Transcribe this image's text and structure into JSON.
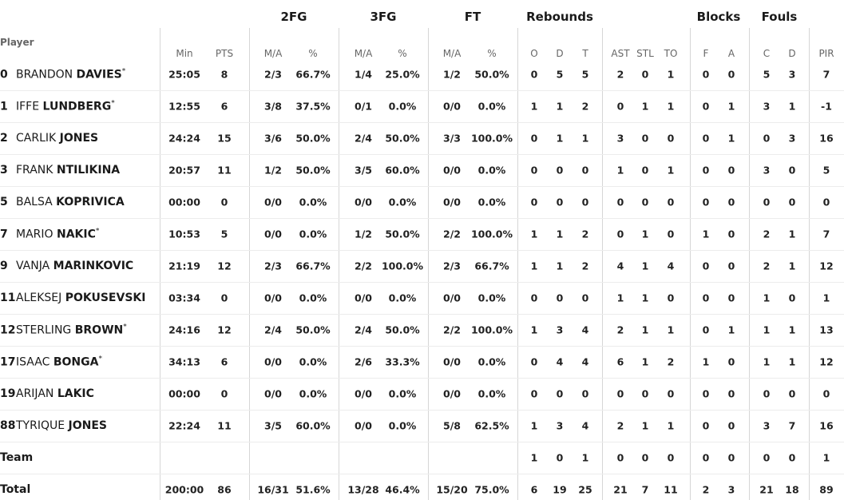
{
  "table": {
    "player_header": "Player",
    "groups": [
      "2FG",
      "3FG",
      "FT",
      "Rebounds",
      "Blocks",
      "Fouls"
    ],
    "columns": [
      "Min",
      "PTS",
      "M/A",
      "%",
      "M/A",
      "%",
      "M/A",
      "%",
      "O",
      "D",
      "T",
      "AST",
      "STL",
      "TO",
      "F",
      "A",
      "C",
      "D",
      "PIR"
    ],
    "rows": [
      {
        "number": "0",
        "first": "BRANDON",
        "last": "DAVIES",
        "mark": "*",
        "stats": [
          "25:05",
          "8",
          "2/3",
          "66.7%",
          "1/4",
          "25.0%",
          "1/2",
          "50.0%",
          "0",
          "5",
          "5",
          "2",
          "0",
          "1",
          "0",
          "0",
          "5",
          "3",
          "7"
        ]
      },
      {
        "number": "1",
        "first": "IFFE",
        "last": "LUNDBERG",
        "mark": "*",
        "stats": [
          "12:55",
          "6",
          "3/8",
          "37.5%",
          "0/1",
          "0.0%",
          "0/0",
          "0.0%",
          "1",
          "1",
          "2",
          "0",
          "1",
          "1",
          "0",
          "1",
          "3",
          "1",
          "-1"
        ]
      },
      {
        "number": "2",
        "first": "CARLIK",
        "last": "JONES",
        "stats": [
          "24:24",
          "15",
          "3/6",
          "50.0%",
          "2/4",
          "50.0%",
          "3/3",
          "100.0%",
          "0",
          "1",
          "1",
          "3",
          "0",
          "0",
          "0",
          "1",
          "0",
          "3",
          "16"
        ]
      },
      {
        "number": "3",
        "first": "FRANK",
        "last": "NTILIKINA",
        "stats": [
          "20:57",
          "11",
          "1/2",
          "50.0%",
          "3/5",
          "60.0%",
          "0/0",
          "0.0%",
          "0",
          "0",
          "0",
          "1",
          "0",
          "1",
          "0",
          "0",
          "3",
          "0",
          "5"
        ]
      },
      {
        "number": "5",
        "first": "BALSA",
        "last": "KOPRIVICA",
        "stats": [
          "00:00",
          "0",
          "0/0",
          "0.0%",
          "0/0",
          "0.0%",
          "0/0",
          "0.0%",
          "0",
          "0",
          "0",
          "0",
          "0",
          "0",
          "0",
          "0",
          "0",
          "0",
          "0"
        ]
      },
      {
        "number": "7",
        "first": "MARIO",
        "last": "NAKIC",
        "mark": "*",
        "stats": [
          "10:53",
          "5",
          "0/0",
          "0.0%",
          "1/2",
          "50.0%",
          "2/2",
          "100.0%",
          "1",
          "1",
          "2",
          "0",
          "1",
          "0",
          "1",
          "0",
          "2",
          "1",
          "7"
        ]
      },
      {
        "number": "9",
        "first": "VANJA",
        "last": "MARINKOVIC",
        "stats": [
          "21:19",
          "12",
          "2/3",
          "66.7%",
          "2/2",
          "100.0%",
          "2/3",
          "66.7%",
          "1",
          "1",
          "2",
          "4",
          "1",
          "4",
          "0",
          "0",
          "2",
          "1",
          "12"
        ]
      },
      {
        "number": "11",
        "first": "ALEKSEJ",
        "last": "POKUSEVSKI",
        "stats": [
          "03:34",
          "0",
          "0/0",
          "0.0%",
          "0/0",
          "0.0%",
          "0/0",
          "0.0%",
          "0",
          "0",
          "0",
          "1",
          "1",
          "0",
          "0",
          "0",
          "1",
          "0",
          "1"
        ]
      },
      {
        "number": "12",
        "first": "STERLING",
        "last": "BROWN",
        "mark": "*",
        "stats": [
          "24:16",
          "12",
          "2/4",
          "50.0%",
          "2/4",
          "50.0%",
          "2/2",
          "100.0%",
          "1",
          "3",
          "4",
          "2",
          "1",
          "1",
          "0",
          "1",
          "1",
          "1",
          "13"
        ]
      },
      {
        "number": "17",
        "first": "ISAAC",
        "last": "BONGA",
        "mark": "*",
        "stats": [
          "34:13",
          "6",
          "0/0",
          "0.0%",
          "2/6",
          "33.3%",
          "0/0",
          "0.0%",
          "0",
          "4",
          "4",
          "6",
          "1",
          "2",
          "1",
          "0",
          "1",
          "1",
          "12"
        ]
      },
      {
        "number": "19",
        "first": "ARIJAN",
        "last": "LAKIC",
        "stats": [
          "00:00",
          "0",
          "0/0",
          "0.0%",
          "0/0",
          "0.0%",
          "0/0",
          "0.0%",
          "0",
          "0",
          "0",
          "0",
          "0",
          "0",
          "0",
          "0",
          "0",
          "0",
          "0"
        ]
      },
      {
        "number": "88",
        "first": "TYRIQUE",
        "last": "JONES",
        "stats": [
          "22:24",
          "11",
          "3/5",
          "60.0%",
          "0/0",
          "0.0%",
          "5/8",
          "62.5%",
          "1",
          "3",
          "4",
          "2",
          "1",
          "1",
          "0",
          "0",
          "3",
          "7",
          "16"
        ]
      },
      {
        "label": "Team",
        "stats": [
          null,
          null,
          null,
          null,
          null,
          null,
          null,
          null,
          "1",
          "0",
          "1",
          "0",
          "0",
          "0",
          "0",
          "0",
          "0",
          "0",
          "1"
        ]
      },
      {
        "label": "Total",
        "stats": [
          "200:00",
          "86",
          "16/31",
          "51.6%",
          "13/28",
          "46.4%",
          "15/20",
          "75.0%",
          "6",
          "19",
          "25",
          "21",
          "7",
          "11",
          "2",
          "3",
          "21",
          "18",
          "89"
        ]
      }
    ]
  }
}
